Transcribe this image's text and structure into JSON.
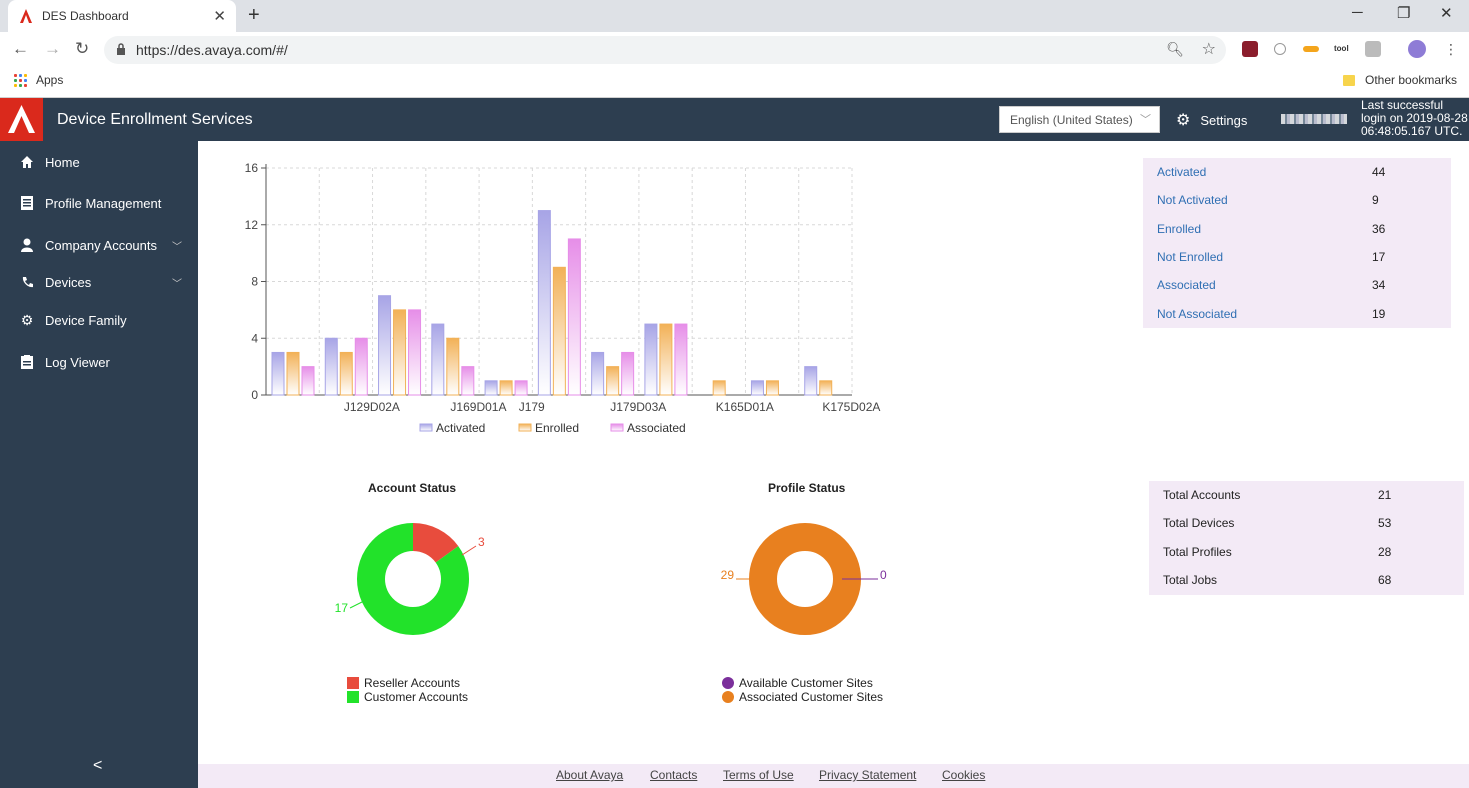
{
  "browser": {
    "tab_title": "DES Dashboard",
    "url": "https://des.avaya.com/#/",
    "apps_label": "Apps",
    "other_bookmarks": "Other bookmarks"
  },
  "header": {
    "title": "Device Enrollment Services",
    "language": "English (United States)",
    "settings_label": "Settings",
    "last_login_line1": "Last successful",
    "last_login_line2": "login on 2019-08-28",
    "last_login_line3": "06:48:05.167 UTC."
  },
  "sidebar": {
    "items": [
      {
        "label": "Home",
        "icon": "home-icon"
      },
      {
        "label": "Profile Management",
        "icon": "document-icon"
      },
      {
        "label": "Company Accounts",
        "icon": "user-icon"
      },
      {
        "label": "Devices",
        "icon": "phone-icon"
      },
      {
        "label": "Device Family",
        "icon": "gear-icon"
      },
      {
        "label": "Log Viewer",
        "icon": "log-icon"
      }
    ],
    "collapse": "<"
  },
  "device_stats": [
    {
      "label": "Activated",
      "value": "44"
    },
    {
      "label": "Not Activated",
      "value": "9"
    },
    {
      "label": "Enrolled",
      "value": "36"
    },
    {
      "label": "Not Enrolled",
      "value": "17"
    },
    {
      "label": "Associated",
      "value": "34"
    },
    {
      "label": "Not Associated",
      "value": "19"
    }
  ],
  "totals": [
    {
      "label": "Total Accounts",
      "value": "21"
    },
    {
      "label": "Total Devices",
      "value": "53"
    },
    {
      "label": "Total Profiles",
      "value": "28"
    },
    {
      "label": "Total Jobs",
      "value": "68"
    }
  ],
  "chart_data": [
    {
      "type": "bar",
      "categories": [
        "",
        "J129D02A",
        "",
        "J169D01A",
        "J179",
        "",
        "J179D03A",
        "",
        "K165D01A",
        "",
        "K175D02A"
      ],
      "series": [
        {
          "name": "Activated",
          "color": "#a7a4e6",
          "values": [
            3,
            4,
            7,
            5,
            1,
            13,
            3,
            5,
            0,
            1,
            2
          ]
        },
        {
          "name": "Enrolled",
          "color": "#f2b157",
          "values": [
            3,
            3,
            6,
            4,
            1,
            9,
            2,
            5,
            1,
            1,
            1
          ]
        },
        {
          "name": "Associated",
          "color": "#e68ee8",
          "values": [
            2,
            4,
            6,
            2,
            1,
            11,
            3,
            5,
            0,
            0,
            0
          ]
        }
      ],
      "ylim": [
        0,
        16
      ],
      "yticks": [
        "0",
        "4",
        "8",
        "12",
        "16"
      ],
      "grid": true,
      "legend": "bottom"
    },
    {
      "type": "pie",
      "title": "Account Status",
      "slices": [
        {
          "label": "Reseller Accounts",
          "value": 3,
          "color": "#e84c3d"
        },
        {
          "label": "Customer Accounts",
          "value": 17,
          "color": "#22e22a"
        }
      ],
      "data_labels": [
        "3",
        "17"
      ],
      "legend": "bottom"
    },
    {
      "type": "pie",
      "title": "Profile Status",
      "slices": [
        {
          "label": "Available Customer Sites",
          "value": 0,
          "color": "#7b2f9b"
        },
        {
          "label": "Associated Customer Sites",
          "value": 29,
          "color": "#e8801f"
        }
      ],
      "data_labels": [
        "0",
        "29"
      ],
      "legend": "bottom"
    }
  ],
  "footer": {
    "links": [
      "About Avaya",
      "Contacts",
      "Terms of Use",
      "Privacy Statement",
      "Cookies"
    ]
  }
}
